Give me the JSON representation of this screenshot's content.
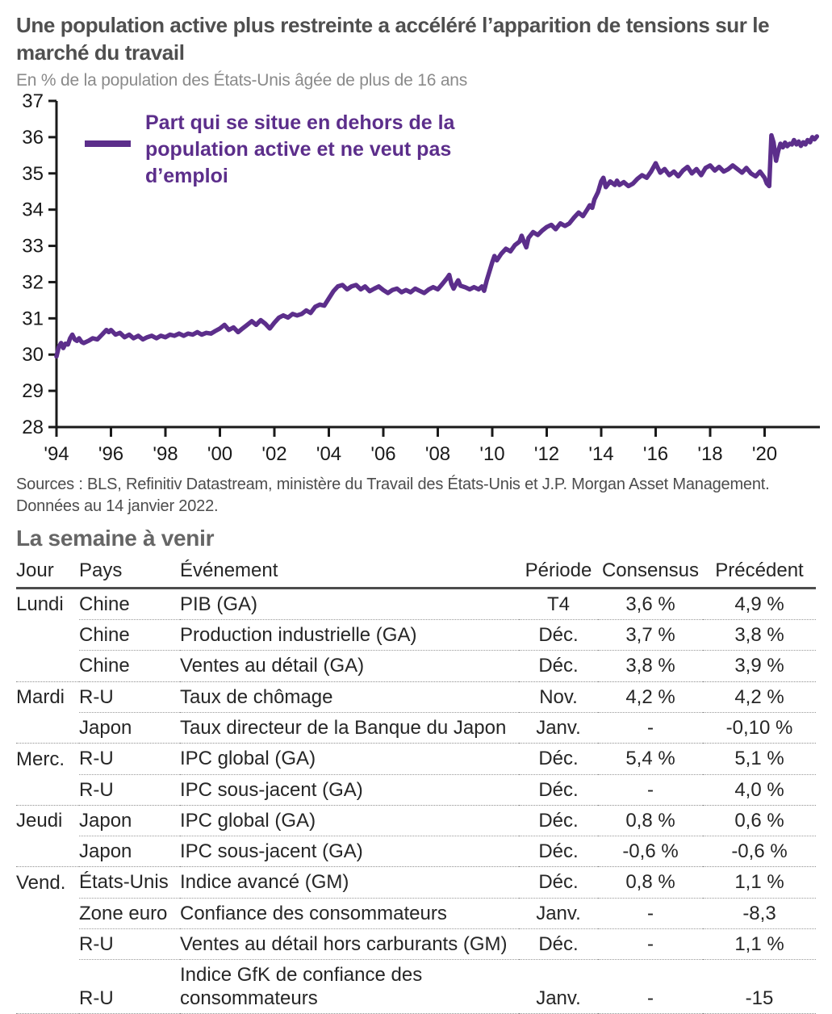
{
  "colors": {
    "line_purple": "#5c2e8b",
    "title_gray": "#4f4f4f",
    "subtitle_gray": "#8a8a8a",
    "axis_black": "#1a1a1a",
    "section_gray": "#666666"
  },
  "header": {
    "title": "Une population active plus restreinte a accéléré l’apparition de tensions sur le marché du travail",
    "subtitle": "En % de la population des États-Unis âgée de plus de 16 ans"
  },
  "chart_data": {
    "type": "line",
    "title": "Une population active plus restreinte a accéléré l’apparition de tensions sur le marché du travail",
    "subtitle": "En % de la population des États-Unis âgée de plus de 16 ans",
    "legend_position": "top-left-inside",
    "grid": false,
    "ylim": [
      28,
      37
    ],
    "ytick_step": 1,
    "xlim": [
      1994,
      2022
    ],
    "xtick_years": [
      1994,
      1996,
      1998,
      2000,
      2002,
      2004,
      2006,
      2008,
      2010,
      2012,
      2014,
      2016,
      2018,
      2020
    ],
    "xtick_labels": [
      "'94",
      "'96",
      "'98",
      "'00",
      "'02",
      "'04",
      "'06",
      "'08",
      "'10",
      "'12",
      "'14",
      "'16",
      "'18",
      "'20"
    ],
    "series": [
      {
        "name": "Part qui se situe en dehors de la population active et ne veut pas d’emploi",
        "legend_lines": [
          "Part qui se situe en dehors de la",
          "population active et ne veut pas",
          "d’emploi"
        ],
        "color": "#5c2e8b",
        "points": [
          [
            1994.0,
            29.95
          ],
          [
            1994.08,
            30.2
          ],
          [
            1994.17,
            30.32
          ],
          [
            1994.25,
            30.18
          ],
          [
            1994.33,
            30.3
          ],
          [
            1994.42,
            30.28
          ],
          [
            1994.5,
            30.45
          ],
          [
            1994.58,
            30.55
          ],
          [
            1994.67,
            30.42
          ],
          [
            1994.75,
            30.38
          ],
          [
            1994.83,
            30.45
          ],
          [
            1994.92,
            30.35
          ],
          [
            1995.0,
            30.32
          ],
          [
            1995.17,
            30.38
          ],
          [
            1995.33,
            30.45
          ],
          [
            1995.5,
            30.42
          ],
          [
            1995.67,
            30.55
          ],
          [
            1995.83,
            30.68
          ],
          [
            1995.92,
            30.62
          ],
          [
            1996.0,
            30.68
          ],
          [
            1996.17,
            30.55
          ],
          [
            1996.33,
            30.6
          ],
          [
            1996.5,
            30.48
          ],
          [
            1996.67,
            30.55
          ],
          [
            1996.83,
            30.45
          ],
          [
            1997.0,
            30.52
          ],
          [
            1997.17,
            30.42
          ],
          [
            1997.33,
            30.48
          ],
          [
            1997.5,
            30.52
          ],
          [
            1997.67,
            30.45
          ],
          [
            1997.83,
            30.52
          ],
          [
            1998.0,
            30.48
          ],
          [
            1998.17,
            30.55
          ],
          [
            1998.33,
            30.52
          ],
          [
            1998.5,
            30.58
          ],
          [
            1998.67,
            30.52
          ],
          [
            1998.83,
            30.58
          ],
          [
            1999.0,
            30.55
          ],
          [
            1999.17,
            30.62
          ],
          [
            1999.33,
            30.55
          ],
          [
            1999.5,
            30.6
          ],
          [
            1999.67,
            30.58
          ],
          [
            1999.83,
            30.65
          ],
          [
            2000.0,
            30.72
          ],
          [
            2000.17,
            30.82
          ],
          [
            2000.33,
            30.68
          ],
          [
            2000.5,
            30.75
          ],
          [
            2000.67,
            30.62
          ],
          [
            2000.83,
            30.72
          ],
          [
            2001.0,
            30.82
          ],
          [
            2001.17,
            30.92
          ],
          [
            2001.33,
            30.82
          ],
          [
            2001.5,
            30.95
          ],
          [
            2001.67,
            30.85
          ],
          [
            2001.83,
            30.72
          ],
          [
            2002.0,
            30.88
          ],
          [
            2002.17,
            31.02
          ],
          [
            2002.33,
            31.08
          ],
          [
            2002.5,
            31.02
          ],
          [
            2002.67,
            31.12
          ],
          [
            2002.83,
            31.08
          ],
          [
            2003.0,
            31.12
          ],
          [
            2003.17,
            31.22
          ],
          [
            2003.33,
            31.15
          ],
          [
            2003.5,
            31.32
          ],
          [
            2003.67,
            31.38
          ],
          [
            2003.83,
            31.35
          ],
          [
            2004.0,
            31.55
          ],
          [
            2004.17,
            31.75
          ],
          [
            2004.33,
            31.88
          ],
          [
            2004.5,
            31.92
          ],
          [
            2004.67,
            31.8
          ],
          [
            2004.83,
            31.88
          ],
          [
            2005.0,
            31.92
          ],
          [
            2005.17,
            31.8
          ],
          [
            2005.33,
            31.88
          ],
          [
            2005.5,
            31.75
          ],
          [
            2005.67,
            31.82
          ],
          [
            2005.83,
            31.88
          ],
          [
            2006.0,
            31.78
          ],
          [
            2006.17,
            31.7
          ],
          [
            2006.33,
            31.78
          ],
          [
            2006.5,
            31.82
          ],
          [
            2006.67,
            31.72
          ],
          [
            2006.83,
            31.78
          ],
          [
            2007.0,
            31.72
          ],
          [
            2007.17,
            31.82
          ],
          [
            2007.33,
            31.76
          ],
          [
            2007.5,
            31.7
          ],
          [
            2007.67,
            31.8
          ],
          [
            2007.83,
            31.86
          ],
          [
            2008.0,
            31.8
          ],
          [
            2008.17,
            31.95
          ],
          [
            2008.33,
            32.1
          ],
          [
            2008.42,
            32.2
          ],
          [
            2008.5,
            31.95
          ],
          [
            2008.58,
            31.82
          ],
          [
            2008.67,
            31.95
          ],
          [
            2008.75,
            32.05
          ],
          [
            2008.83,
            31.9
          ],
          [
            2009.0,
            31.86
          ],
          [
            2009.17,
            31.8
          ],
          [
            2009.33,
            31.86
          ],
          [
            2009.5,
            31.8
          ],
          [
            2009.62,
            31.88
          ],
          [
            2009.7,
            31.76
          ],
          [
            2009.8,
            32.05
          ],
          [
            2009.92,
            32.35
          ],
          [
            2010.0,
            32.55
          ],
          [
            2010.08,
            32.72
          ],
          [
            2010.17,
            32.6
          ],
          [
            2010.33,
            32.78
          ],
          [
            2010.5,
            32.92
          ],
          [
            2010.67,
            32.85
          ],
          [
            2010.83,
            33.02
          ],
          [
            2011.0,
            33.12
          ],
          [
            2011.08,
            33.28
          ],
          [
            2011.17,
            33.1
          ],
          [
            2011.25,
            32.96
          ],
          [
            2011.33,
            33.22
          ],
          [
            2011.5,
            33.38
          ],
          [
            2011.67,
            33.3
          ],
          [
            2011.83,
            33.42
          ],
          [
            2012.0,
            33.52
          ],
          [
            2012.17,
            33.58
          ],
          [
            2012.33,
            33.46
          ],
          [
            2012.5,
            33.62
          ],
          [
            2012.67,
            33.55
          ],
          [
            2012.83,
            33.62
          ],
          [
            2013.0,
            33.78
          ],
          [
            2013.17,
            33.92
          ],
          [
            2013.33,
            33.82
          ],
          [
            2013.5,
            34.02
          ],
          [
            2013.58,
            34.12
          ],
          [
            2013.67,
            34.05
          ],
          [
            2013.75,
            34.28
          ],
          [
            2013.88,
            34.48
          ],
          [
            2014.0,
            34.78
          ],
          [
            2014.08,
            34.88
          ],
          [
            2014.17,
            34.62
          ],
          [
            2014.33,
            34.78
          ],
          [
            2014.5,
            34.68
          ],
          [
            2014.58,
            34.8
          ],
          [
            2014.67,
            34.68
          ],
          [
            2014.83,
            34.76
          ],
          [
            2015.0,
            34.65
          ],
          [
            2015.17,
            34.72
          ],
          [
            2015.33,
            34.85
          ],
          [
            2015.5,
            34.95
          ],
          [
            2015.67,
            34.88
          ],
          [
            2015.83,
            35.05
          ],
          [
            2016.0,
            35.28
          ],
          [
            2016.08,
            35.15
          ],
          [
            2016.17,
            35.02
          ],
          [
            2016.33,
            35.12
          ],
          [
            2016.5,
            34.95
          ],
          [
            2016.67,
            35.05
          ],
          [
            2016.83,
            34.92
          ],
          [
            2017.0,
            35.08
          ],
          [
            2017.17,
            35.18
          ],
          [
            2017.33,
            35.0
          ],
          [
            2017.5,
            35.12
          ],
          [
            2017.67,
            34.95
          ],
          [
            2017.83,
            35.15
          ],
          [
            2018.0,
            35.22
          ],
          [
            2018.17,
            35.08
          ],
          [
            2018.33,
            35.18
          ],
          [
            2018.5,
            35.05
          ],
          [
            2018.67,
            35.12
          ],
          [
            2018.83,
            35.22
          ],
          [
            2019.0,
            35.12
          ],
          [
            2019.17,
            35.02
          ],
          [
            2019.33,
            35.15
          ],
          [
            2019.5,
            35.0
          ],
          [
            2019.67,
            34.92
          ],
          [
            2019.83,
            35.05
          ],
          [
            2020.0,
            34.88
          ],
          [
            2020.08,
            34.72
          ],
          [
            2020.17,
            34.65
          ],
          [
            2020.25,
            36.05
          ],
          [
            2020.33,
            35.85
          ],
          [
            2020.42,
            35.35
          ],
          [
            2020.5,
            35.62
          ],
          [
            2020.58,
            35.82
          ],
          [
            2020.67,
            35.72
          ],
          [
            2020.75,
            35.85
          ],
          [
            2020.83,
            35.75
          ],
          [
            2020.92,
            35.82
          ],
          [
            2021.0,
            35.8
          ],
          [
            2021.08,
            35.92
          ],
          [
            2021.17,
            35.8
          ],
          [
            2021.25,
            35.88
          ],
          [
            2021.33,
            35.76
          ],
          [
            2021.42,
            35.86
          ],
          [
            2021.5,
            35.8
          ],
          [
            2021.58,
            35.92
          ],
          [
            2021.67,
            35.86
          ],
          [
            2021.75,
            36.0
          ],
          [
            2021.83,
            35.94
          ],
          [
            2021.92,
            36.02
          ]
        ]
      }
    ]
  },
  "sources": {
    "line1": "Sources : BLS, Refinitiv Datastream, ministère du Travail des États-Unis et J.P. Morgan Asset Management.",
    "line2": "Données au 14 janvier 2022."
  },
  "section": {
    "title": "La semaine à venir"
  },
  "table": {
    "headers": [
      "Jour",
      "Pays",
      "Événement",
      "Période",
      "Consensus",
      "Précédent"
    ],
    "rows": [
      {
        "jour": "Lundi",
        "pays": "Chine",
        "evenement": "PIB (GA)",
        "periode": "T4",
        "consensus": "3,6 %",
        "precedent": "4,9 %"
      },
      {
        "jour": "",
        "pays": "Chine",
        "evenement": "Production industrielle (GA)",
        "periode": "Déc.",
        "consensus": "3,7 %",
        "precedent": "3,8 %"
      },
      {
        "jour": "",
        "pays": "Chine",
        "evenement": "Ventes au détail (GA)",
        "periode": "Déc.",
        "consensus": "3,8 %",
        "precedent": "3,9 %"
      },
      {
        "jour": "Mardi",
        "pays": "R-U",
        "evenement": "Taux de chômage",
        "periode": "Nov.",
        "consensus": "4,2 %",
        "precedent": "4,2 %"
      },
      {
        "jour": "",
        "pays": "Japon",
        "evenement": "Taux directeur de la Banque du Japon",
        "periode": "Janv.",
        "consensus": "-",
        "precedent": "-0,10 %"
      },
      {
        "jour": "Merc.",
        "pays": "R-U",
        "evenement": "IPC global (GA)",
        "periode": "Déc.",
        "consensus": "5,4 %",
        "precedent": "5,1 %"
      },
      {
        "jour": "",
        "pays": "R-U",
        "evenement": "IPC sous-jacent (GA)",
        "periode": "Déc.",
        "consensus": "-",
        "precedent": "4,0 %"
      },
      {
        "jour": "Jeudi",
        "pays": "Japon",
        "evenement": "IPC global (GA)",
        "periode": "Déc.",
        "consensus": "0,8 %",
        "precedent": "0,6 %"
      },
      {
        "jour": "",
        "pays": "Japon",
        "evenement": "IPC sous-jacent (GA)",
        "periode": "Déc.",
        "consensus": "-0,6 %",
        "precedent": "-0,6 %"
      },
      {
        "jour": "Vend.",
        "pays": "États-Unis",
        "evenement": "Indice avancé (GM)",
        "periode": "Déc.",
        "consensus": "0,8 %",
        "precedent": "1,1 %"
      },
      {
        "jour": "",
        "pays": "Zone euro",
        "evenement": "Confiance des consommateurs",
        "periode": "Janv.",
        "consensus": "-",
        "precedent": "-8,3"
      },
      {
        "jour": "",
        "pays": "R-U",
        "evenement": "Ventes au détail hors carburants (GM)",
        "periode": "Déc.",
        "consensus": "-",
        "precedent": "1,1 %"
      },
      {
        "jour": "",
        "pays": "R-U",
        "evenement": "Indice GfK de confiance des consommateurs",
        "periode": "Janv.",
        "consensus": "-",
        "precedent": "-15"
      }
    ]
  }
}
